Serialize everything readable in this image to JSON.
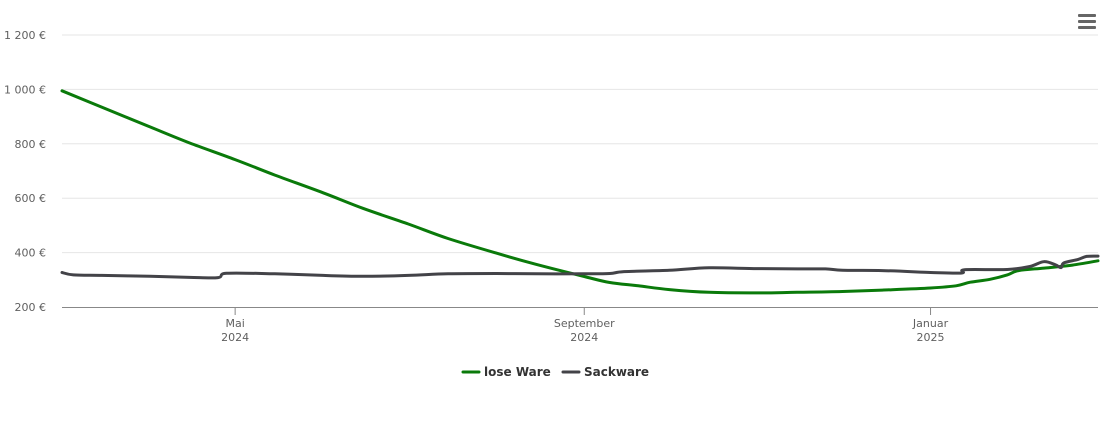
{
  "chart_data": {
    "type": "line",
    "title": "",
    "xlabel": "",
    "ylabel": "",
    "y_unit": "€",
    "ylim": [
      200,
      1200
    ],
    "y_ticks": [
      {
        "value": 200,
        "label": "200 €"
      },
      {
        "value": 400,
        "label": "400 €"
      },
      {
        "value": 600,
        "label": "600 €"
      },
      {
        "value": 800,
        "label": "800 €"
      },
      {
        "value": 1000,
        "label": "1 000 €"
      },
      {
        "value": 1200,
        "label": "1 200 €"
      }
    ],
    "xlim": [
      "2024-03-01",
      "2025-03-01"
    ],
    "x_ticks": [
      {
        "date": "2024-05-01",
        "month": "Mai",
        "year": "2024"
      },
      {
        "date": "2024-09-01",
        "month": "September",
        "year": "2024"
      },
      {
        "date": "2025-01-01",
        "month": "Januar",
        "year": "2025"
      }
    ],
    "grid": true,
    "legend": "bottom-center",
    "series": [
      {
        "name": "lose Ware",
        "color": "#0a7a0a",
        "points": [
          [
            "2024-03-01",
            995
          ],
          [
            "2024-03-15",
            935
          ],
          [
            "2024-04-01",
            862
          ],
          [
            "2024-04-15",
            803
          ],
          [
            "2024-05-01",
            742
          ],
          [
            "2024-05-15",
            685
          ],
          [
            "2024-06-01",
            620
          ],
          [
            "2024-06-15",
            563
          ],
          [
            "2024-07-01",
            505
          ],
          [
            "2024-07-15",
            452
          ],
          [
            "2024-08-01",
            398
          ],
          [
            "2024-08-15",
            357
          ],
          [
            "2024-09-01",
            312
          ],
          [
            "2024-09-10",
            290
          ],
          [
            "2024-09-20",
            278
          ],
          [
            "2024-10-01",
            264
          ],
          [
            "2024-10-15",
            254
          ],
          [
            "2024-11-01",
            252
          ],
          [
            "2024-11-15",
            254
          ],
          [
            "2024-12-01",
            257
          ],
          [
            "2024-12-15",
            262
          ],
          [
            "2025-01-01",
            270
          ],
          [
            "2025-01-10",
            278
          ],
          [
            "2025-01-15",
            291
          ],
          [
            "2025-01-22",
            302
          ],
          [
            "2025-01-28",
            318
          ],
          [
            "2025-02-01",
            334
          ],
          [
            "2025-02-10",
            343
          ],
          [
            "2025-02-20",
            354
          ],
          [
            "2025-03-01",
            370
          ]
        ]
      },
      {
        "name": "Sackware",
        "color": "#434348",
        "points": [
          [
            "2024-03-01",
            327
          ],
          [
            "2024-03-05",
            318
          ],
          [
            "2024-03-15",
            316
          ],
          [
            "2024-04-01",
            313
          ],
          [
            "2024-04-15",
            309
          ],
          [
            "2024-04-25",
            308
          ],
          [
            "2024-04-28",
            324
          ],
          [
            "2024-05-15",
            322
          ],
          [
            "2024-06-01",
            316
          ],
          [
            "2024-06-15",
            313
          ],
          [
            "2024-07-01",
            316
          ],
          [
            "2024-07-15",
            322
          ],
          [
            "2024-08-01",
            323
          ],
          [
            "2024-08-15",
            322
          ],
          [
            "2024-09-01",
            322
          ],
          [
            "2024-09-10",
            323
          ],
          [
            "2024-09-15",
            330
          ],
          [
            "2024-10-01",
            335
          ],
          [
            "2024-10-15",
            344
          ],
          [
            "2024-11-01",
            341
          ],
          [
            "2024-11-15",
            340
          ],
          [
            "2024-11-25",
            340
          ],
          [
            "2024-12-01",
            335
          ],
          [
            "2024-12-15",
            334
          ],
          [
            "2025-01-01",
            327
          ],
          [
            "2025-01-12",
            325
          ],
          [
            "2025-01-13",
            337
          ],
          [
            "2025-01-28",
            338
          ],
          [
            "2025-02-05",
            349
          ],
          [
            "2025-02-10",
            367
          ],
          [
            "2025-02-14",
            355
          ],
          [
            "2025-02-16",
            345
          ],
          [
            "2025-02-17",
            362
          ],
          [
            "2025-02-22",
            375
          ],
          [
            "2025-02-25",
            386
          ],
          [
            "2025-03-01",
            387
          ]
        ]
      }
    ]
  },
  "icons": {
    "menu": "hamburger-menu-icon"
  }
}
